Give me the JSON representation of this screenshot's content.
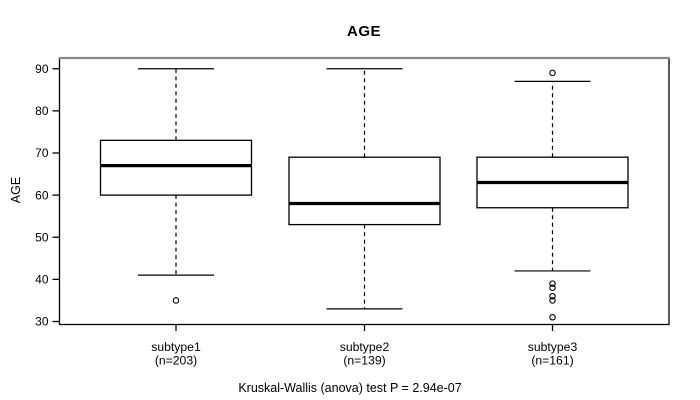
{
  "chart_data": {
    "type": "boxplot",
    "title": "AGE",
    "ylabel": "AGE",
    "xlabel": "",
    "caption": "Kruskal-Wallis (anova) test P = 2.94e-07",
    "yticks": [
      30,
      40,
      50,
      60,
      70,
      80,
      90
    ],
    "ylim": [
      29.3,
      92.5
    ],
    "grid": false,
    "legend": "none",
    "groups": [
      {
        "label": "subtype1",
        "count_label": "(n=203)",
        "n": 203,
        "whisker_low": 41,
        "q1": 60,
        "median": 67,
        "q3": 73,
        "whisker_high": 90,
        "outliers": [
          35
        ]
      },
      {
        "label": "subtype2",
        "count_label": "(n=139)",
        "n": 139,
        "whisker_low": 33,
        "q1": 53,
        "median": 58,
        "q3": 69,
        "whisker_high": 90,
        "outliers": []
      },
      {
        "label": "subtype3",
        "count_label": "(n=161)",
        "n": 161,
        "whisker_low": 42,
        "q1": 57,
        "median": 63,
        "q3": 69,
        "whisker_high": 87,
        "outliers": [
          89,
          39,
          38,
          36,
          35,
          31
        ]
      }
    ],
    "colors": {
      "line": "#000000",
      "median": "#000000",
      "box_fill": "#ffffff",
      "background": "#ffffff",
      "border_top": "#8a8a8a"
    }
  }
}
